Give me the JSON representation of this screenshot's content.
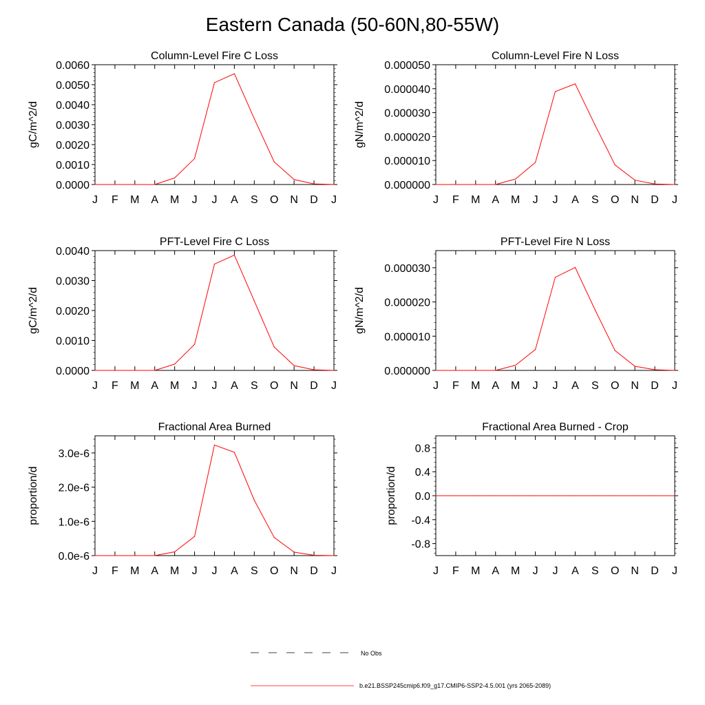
{
  "title": "Eastern Canada (50-60N,80-55W)",
  "months": [
    "J",
    "F",
    "M",
    "A",
    "M",
    "J",
    "J",
    "A",
    "S",
    "O",
    "N",
    "D",
    "J"
  ],
  "legend": [
    {
      "label": "No Obs",
      "style": "dashed",
      "color": "#000000"
    },
    {
      "label": "b.e21.BSSP245cmip6.f09_g17.CMIP6-SSP2-4.5.001 (yrs 2065-2089)",
      "style": "solid",
      "color": "#ff0000"
    }
  ],
  "chart_data": [
    {
      "type": "line",
      "title": "Column-Level Fire C Loss",
      "ylabel": "gC/m^2/d",
      "ylim": [
        0,
        0.006
      ],
      "yticks": [
        0,
        0.001,
        0.002,
        0.003,
        0.004,
        0.005,
        0.006
      ],
      "ytick_labels": [
        "0.0000",
        "0.0010",
        "0.0020",
        "0.0030",
        "0.0040",
        "0.0050",
        "0.0060"
      ],
      "series": [
        {
          "color": "#ff0000",
          "values": [
            0,
            0,
            0,
            0,
            0.00033,
            0.0013,
            0.0051,
            0.00555,
            0.0033,
            0.00113,
            0.00025,
            3e-05,
            0
          ]
        }
      ]
    },
    {
      "type": "line",
      "title": "Column-Level Fire N Loss",
      "ylabel": "gN/m^2/d",
      "ylim": [
        0,
        5e-05
      ],
      "yticks": [
        0,
        1e-05,
        2e-05,
        3e-05,
        4e-05,
        5e-05
      ],
      "ytick_labels": [
        "0.000000",
        "0.000010",
        "0.000020",
        "0.000030",
        "0.000040",
        "0.000050"
      ],
      "series": [
        {
          "color": "#ff0000",
          "values": [
            0,
            0,
            0,
            0,
            2.3e-06,
            9.2e-06,
            3.88e-05,
            4.2e-05,
            2.48e-05,
            8.2e-06,
            1.8e-06,
            2e-07,
            0
          ]
        }
      ]
    },
    {
      "type": "line",
      "title": "PFT-Level Fire C Loss",
      "ylabel": "gC/m^2/d",
      "ylim": [
        0,
        0.004
      ],
      "yticks": [
        0,
        0.001,
        0.002,
        0.003,
        0.004
      ],
      "ytick_labels": [
        "0.0000",
        "0.0010",
        "0.0020",
        "0.0030",
        "0.0040"
      ],
      "series": [
        {
          "color": "#ff0000",
          "values": [
            0,
            0,
            0,
            0,
            0.00021,
            0.00087,
            0.00355,
            0.00385,
            0.00232,
            0.00078,
            0.00016,
            2e-05,
            0
          ]
        }
      ]
    },
    {
      "type": "line",
      "title": "PFT-Level Fire N Loss",
      "ylabel": "gN/m^2/d",
      "ylim": [
        0,
        3.5e-05
      ],
      "yticks": [
        0,
        1e-05,
        2e-05,
        3e-05
      ],
      "ytick_labels": [
        "0.000000",
        "0.000010",
        "0.000020",
        "0.000030"
      ],
      "series": [
        {
          "color": "#ff0000",
          "values": [
            0,
            0,
            0,
            0,
            1.5e-06,
            6.1e-06,
            2.72e-05,
            3.01e-05,
            1.77e-05,
            5.8e-06,
            1.2e-06,
            2e-07,
            0
          ]
        }
      ]
    },
    {
      "type": "line",
      "title": "Fractional Area Burned",
      "ylabel": "proportion/d",
      "ylim": [
        0,
        3.5e-06
      ],
      "yticks": [
        0,
        1e-06,
        2e-06,
        3e-06
      ],
      "ytick_labels": [
        "0.0e-6",
        "1.0e-6",
        "2.0e-6",
        "3.0e-6"
      ],
      "series": [
        {
          "color": "#ff0000",
          "values": [
            0,
            0,
            0,
            0,
            1.1e-07,
            5.6e-07,
            3.23e-06,
            3.02e-06,
            1.62e-06,
            5.3e-07,
            1e-07,
            1e-08,
            0
          ]
        }
      ]
    },
    {
      "type": "line",
      "title": "Fractional Area Burned - Crop",
      "ylabel": "proportion/d",
      "ylim": [
        -1,
        1
      ],
      "yticks": [
        -0.8,
        -0.4,
        0,
        0.4,
        0.8
      ],
      "ytick_labels": [
        "-0.8",
        "-0.4",
        "0.0",
        "0.4",
        "0.8"
      ],
      "series": [
        {
          "color": "#ff0000",
          "values": [
            0,
            0,
            0,
            0,
            0,
            0,
            0,
            0,
            0,
            0,
            0,
            0,
            0
          ]
        }
      ]
    }
  ]
}
